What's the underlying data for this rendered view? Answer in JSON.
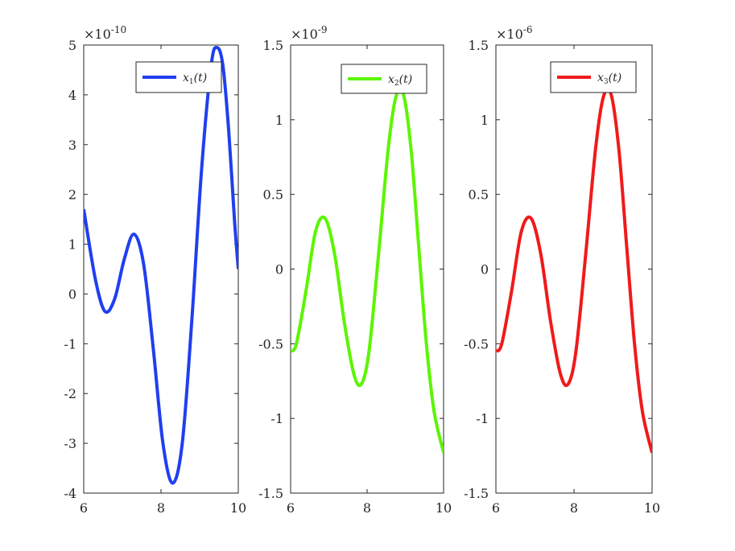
{
  "chart_data": [
    {
      "type": "line",
      "xlim": [
        6,
        10
      ],
      "ylim": [
        -4,
        5
      ],
      "xticks": [
        6,
        8,
        10
      ],
      "xtick_labels": [
        "6",
        "8",
        "10"
      ],
      "yticks": [
        -4,
        -3,
        -2,
        -1,
        0,
        1,
        2,
        3,
        4,
        5
      ],
      "ytick_labels": [
        "-4",
        "-3",
        "-2",
        "-1",
        "0",
        "1",
        "2",
        "3",
        "4",
        "5"
      ],
      "multiplier_base": "×10",
      "multiplier_exp": "-10",
      "legend_placement": "top-right",
      "grid": false,
      "series": [
        {
          "legend_base": "x",
          "legend_sub": "1",
          "legend_tail": "(t)",
          "color": "#1f3ff0",
          "x": [
            6.0,
            6.3,
            6.55,
            6.8,
            7.05,
            7.3,
            7.55,
            7.8,
            8.05,
            8.3,
            8.55,
            8.8,
            9.05,
            9.3,
            9.45,
            9.6,
            9.75,
            9.9,
            10.0
          ],
          "y": [
            1.7,
            0.3,
            -0.35,
            -0.1,
            0.7,
            1.2,
            0.6,
            -1.1,
            -3.0,
            -3.8,
            -3.0,
            -0.5,
            2.5,
            4.6,
            4.95,
            4.6,
            3.3,
            1.5,
            0.5
          ]
        }
      ]
    },
    {
      "type": "line",
      "xlim": [
        6,
        10
      ],
      "ylim": [
        -1.5,
        1.5
      ],
      "xticks": [
        6,
        8,
        10
      ],
      "xtick_labels": [
        "6",
        "8",
        "10"
      ],
      "yticks": [
        -1.5,
        -1,
        -0.5,
        0,
        0.5,
        1,
        1.5
      ],
      "ytick_labels": [
        "-1.5",
        "-1",
        "-0.5",
        "0",
        "0.5",
        "1",
        "1.5"
      ],
      "multiplier_base": "×10",
      "multiplier_exp": "-9",
      "legend_placement": "top-right",
      "grid": false,
      "series": [
        {
          "legend_base": "x",
          "legend_sub": "2",
          "legend_tail": "(t)",
          "color": "#5cf500",
          "x": [
            6.0,
            6.15,
            6.4,
            6.65,
            6.9,
            7.15,
            7.4,
            7.65,
            7.85,
            8.05,
            8.3,
            8.55,
            8.75,
            8.95,
            9.15,
            9.35,
            9.55,
            9.75,
            10.0
          ],
          "y": [
            -0.55,
            -0.5,
            -0.15,
            0.25,
            0.34,
            0.1,
            -0.35,
            -0.7,
            -0.77,
            -0.55,
            0.1,
            0.8,
            1.15,
            1.17,
            0.8,
            0.15,
            -0.5,
            -0.95,
            -1.23
          ]
        }
      ]
    },
    {
      "type": "line",
      "xlim": [
        6,
        10
      ],
      "ylim": [
        -1.5,
        1.5
      ],
      "xticks": [
        6,
        8,
        10
      ],
      "xtick_labels": [
        "6",
        "8",
        "10"
      ],
      "yticks": [
        -1.5,
        -1,
        -0.5,
        0,
        0.5,
        1,
        1.5
      ],
      "ytick_labels": [
        "-1.5",
        "-1",
        "-0.5",
        "0",
        "0.5",
        "1",
        "1.5"
      ],
      "multiplier_base": "×10",
      "multiplier_exp": "-6",
      "legend_placement": "top-right",
      "grid": false,
      "series": [
        {
          "legend_base": "x",
          "legend_sub": "3",
          "legend_tail": "(t)",
          "color": "#f01a1a",
          "x": [
            6.0,
            6.15,
            6.4,
            6.65,
            6.9,
            7.15,
            7.4,
            7.65,
            7.85,
            8.05,
            8.3,
            8.55,
            8.75,
            8.95,
            9.15,
            9.35,
            9.55,
            9.75,
            10.0
          ],
          "y": [
            -0.55,
            -0.5,
            -0.15,
            0.25,
            0.34,
            0.1,
            -0.35,
            -0.7,
            -0.77,
            -0.55,
            0.1,
            0.8,
            1.15,
            1.17,
            0.8,
            0.15,
            -0.5,
            -0.95,
            -1.23
          ]
        }
      ]
    }
  ]
}
